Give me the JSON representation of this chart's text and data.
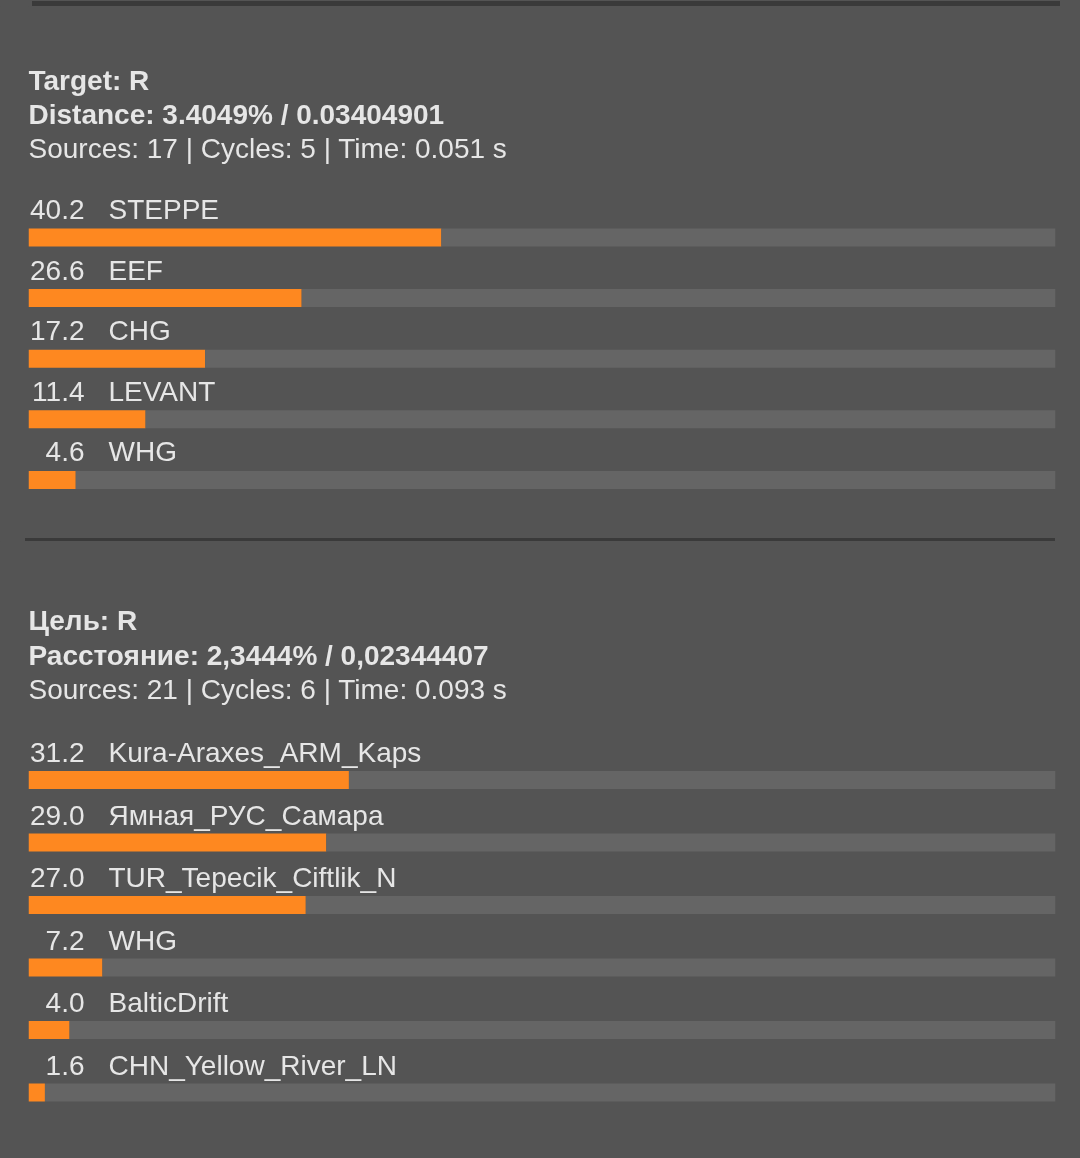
{
  "chart_data": [
    {
      "type": "bar",
      "orientation": "horizontal",
      "stacked": true,
      "title": "Target: R",
      "subtitle": "Distance: 3.4049% / 0.03404901",
      "annotations": [
        "Sources: 17 | Cycles: 5 | Time: 0.051 s"
      ],
      "categories": [
        "STEPPE",
        "EEF",
        "CHG",
        "LEVANT",
        "WHG"
      ],
      "series": [
        {
          "color": "#fe8820",
          "values": [
            40.2,
            26.6,
            17.2,
            11.4,
            4.6
          ],
          "value_labels": [
            "40.2",
            "26.6",
            "17.2",
            "11.4",
            "4.6"
          ]
        },
        {
          "color": "#656565",
          "values": [
            59.8,
            73.4,
            82.8,
            88.6,
            95.4
          ]
        }
      ],
      "tick_labels": false
    },
    {
      "type": "bar",
      "orientation": "horizontal",
      "stacked": true,
      "title": "Цель: R",
      "subtitle": "Расстояние: 2,3444% / 0,02344407",
      "annotations": [
        "Sources: 21 | Cycles: 6 | Time: 0.093 s"
      ],
      "categories": [
        "Kura-Araxes_ARM_Kaps",
        "Ямная_РУС_Самара",
        "TUR_Tepecik_Ciftlik_N",
        "WHG",
        "BalticDrift",
        "CHN_Yellow_River_LN"
      ],
      "series": [
        {
          "color": "#fe8820",
          "values": [
            31.2,
            29.0,
            27.0,
            7.2,
            4.0,
            1.6
          ],
          "value_labels": [
            "31.2",
            "29.0",
            "27.0",
            "7.2",
            "4.0",
            "1.6"
          ]
        },
        {
          "color": "#656565",
          "values": [
            68.8,
            71.0,
            73.0,
            92.8,
            96.0,
            98.4
          ]
        }
      ],
      "tick_labels": false
    }
  ]
}
